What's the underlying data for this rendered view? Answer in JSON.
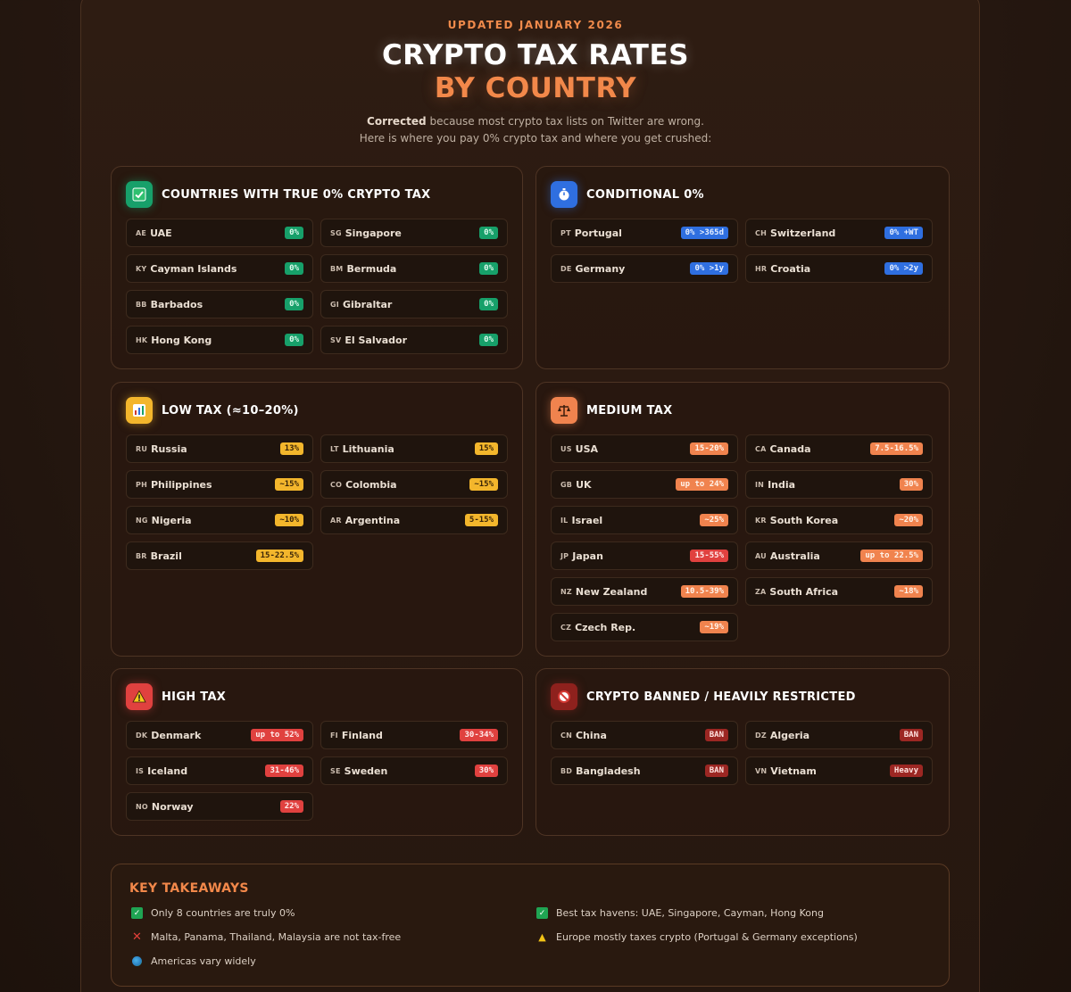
{
  "header": {
    "updated": "UPDATED JANUARY 2026",
    "title_line1": "CRYPTO TAX RATES",
    "title_line2": "BY COUNTRY",
    "subtitle_bold": "Corrected",
    "subtitle_rest": "because most crypto tax lists on Twitter are wrong.",
    "subtitle_line2": "Here is where you pay 0% crypto tax and where you get crushed:"
  },
  "sections": {
    "zero": {
      "title": "COUNTRIES WITH TRUE 0% CRYPTO TAX",
      "icon": "check-icon",
      "color": "#17a06a",
      "rows": [
        {
          "code": "AE",
          "name": "UAE",
          "rate": "0%"
        },
        {
          "code": "SG",
          "name": "Singapore",
          "rate": "0%"
        },
        {
          "code": "KY",
          "name": "Cayman Islands",
          "rate": "0%"
        },
        {
          "code": "BM",
          "name": "Bermuda",
          "rate": "0%"
        },
        {
          "code": "BB",
          "name": "Barbados",
          "rate": "0%"
        },
        {
          "code": "GI",
          "name": "Gibraltar",
          "rate": "0%"
        },
        {
          "code": "HK",
          "name": "Hong Kong",
          "rate": "0%"
        },
        {
          "code": "SV",
          "name": "El Salvador",
          "rate": "0%"
        }
      ]
    },
    "conditional": {
      "title": "CONDITIONAL 0%",
      "icon": "stopwatch-icon",
      "color": "#2f6fe0",
      "rows": [
        {
          "code": "PT",
          "name": "Portugal",
          "rate": "0% >365d"
        },
        {
          "code": "CH",
          "name": "Switzerland",
          "rate": "0% +WT"
        },
        {
          "code": "DE",
          "name": "Germany",
          "rate": "0% >1y"
        },
        {
          "code": "HR",
          "name": "Croatia",
          "rate": "0% >2y"
        }
      ]
    },
    "low": {
      "title": "LOW TAX (≈10–20%)",
      "icon": "bar-chart-icon",
      "color": "#f3b62c",
      "rows": [
        {
          "code": "RU",
          "name": "Russia",
          "rate": "13%"
        },
        {
          "code": "LT",
          "name": "Lithuania",
          "rate": "15%"
        },
        {
          "code": "PH",
          "name": "Philippines",
          "rate": "~15%"
        },
        {
          "code": "CO",
          "name": "Colombia",
          "rate": "~15%"
        },
        {
          "code": "NG",
          "name": "Nigeria",
          "rate": "~10%"
        },
        {
          "code": "AR",
          "name": "Argentina",
          "rate": "5-15%"
        },
        {
          "code": "BR",
          "name": "Brazil",
          "rate": "15-22.5%"
        }
      ]
    },
    "medium": {
      "title": "MEDIUM TAX",
      "icon": "scales-icon",
      "color": "#f0834e",
      "rows": [
        {
          "code": "US",
          "name": "USA",
          "rate": "15-20%"
        },
        {
          "code": "CA",
          "name": "Canada",
          "rate": "7.5-16.5%"
        },
        {
          "code": "GB",
          "name": "UK",
          "rate": "up to 24%"
        },
        {
          "code": "IN",
          "name": "India",
          "rate": "30%"
        },
        {
          "code": "IL",
          "name": "Israel",
          "rate": "~25%"
        },
        {
          "code": "KR",
          "name": "South Korea",
          "rate": "~20%"
        },
        {
          "code": "JP",
          "name": "Japan",
          "rate": "15-55%"
        },
        {
          "code": "AU",
          "name": "Australia",
          "rate": "up to 22.5%"
        },
        {
          "code": "NZ",
          "name": "New Zealand",
          "rate": "10.5-39%"
        },
        {
          "code": "ZA",
          "name": "South Africa",
          "rate": "~18%"
        },
        {
          "code": "CZ",
          "name": "Czech Rep.",
          "rate": "~19%"
        }
      ]
    },
    "high": {
      "title": "HIGH TAX",
      "icon": "warning-icon",
      "color": "#e0413f",
      "rows": [
        {
          "code": "DK",
          "name": "Denmark",
          "rate": "up to 52%"
        },
        {
          "code": "FI",
          "name": "Finland",
          "rate": "30-34%"
        },
        {
          "code": "IS",
          "name": "Iceland",
          "rate": "31-46%"
        },
        {
          "code": "SE",
          "name": "Sweden",
          "rate": "30%"
        },
        {
          "code": "NO",
          "name": "Norway",
          "rate": "22%"
        }
      ]
    },
    "banned": {
      "title": "CRYPTO BANNED / HEAVILY RESTRICTED",
      "icon": "prohibited-icon",
      "color": "#9c2723",
      "rows": [
        {
          "code": "CN",
          "name": "China",
          "rate": "BAN"
        },
        {
          "code": "DZ",
          "name": "Algeria",
          "rate": "BAN"
        },
        {
          "code": "BD",
          "name": "Bangladesh",
          "rate": "BAN"
        },
        {
          "code": "VN",
          "name": "Vietnam",
          "rate": "Heavy"
        }
      ]
    }
  },
  "takeaways": {
    "title": "KEY TAKEAWAYS",
    "items": [
      {
        "icon": "check-icon",
        "text": "Only 8 countries are truly 0%"
      },
      {
        "icon": "check-icon",
        "text": "Best tax havens: UAE, Singapore, Cayman, Hong Kong"
      },
      {
        "icon": "cross-icon",
        "text": "Malta, Panama, Thailand, Malaysia are not tax-free"
      },
      {
        "icon": "warning-icon",
        "text": "Europe mostly taxes crypto (Portugal & Germany exceptions)"
      },
      {
        "icon": "globe-icon",
        "text": "Americas vary widely"
      }
    ]
  }
}
